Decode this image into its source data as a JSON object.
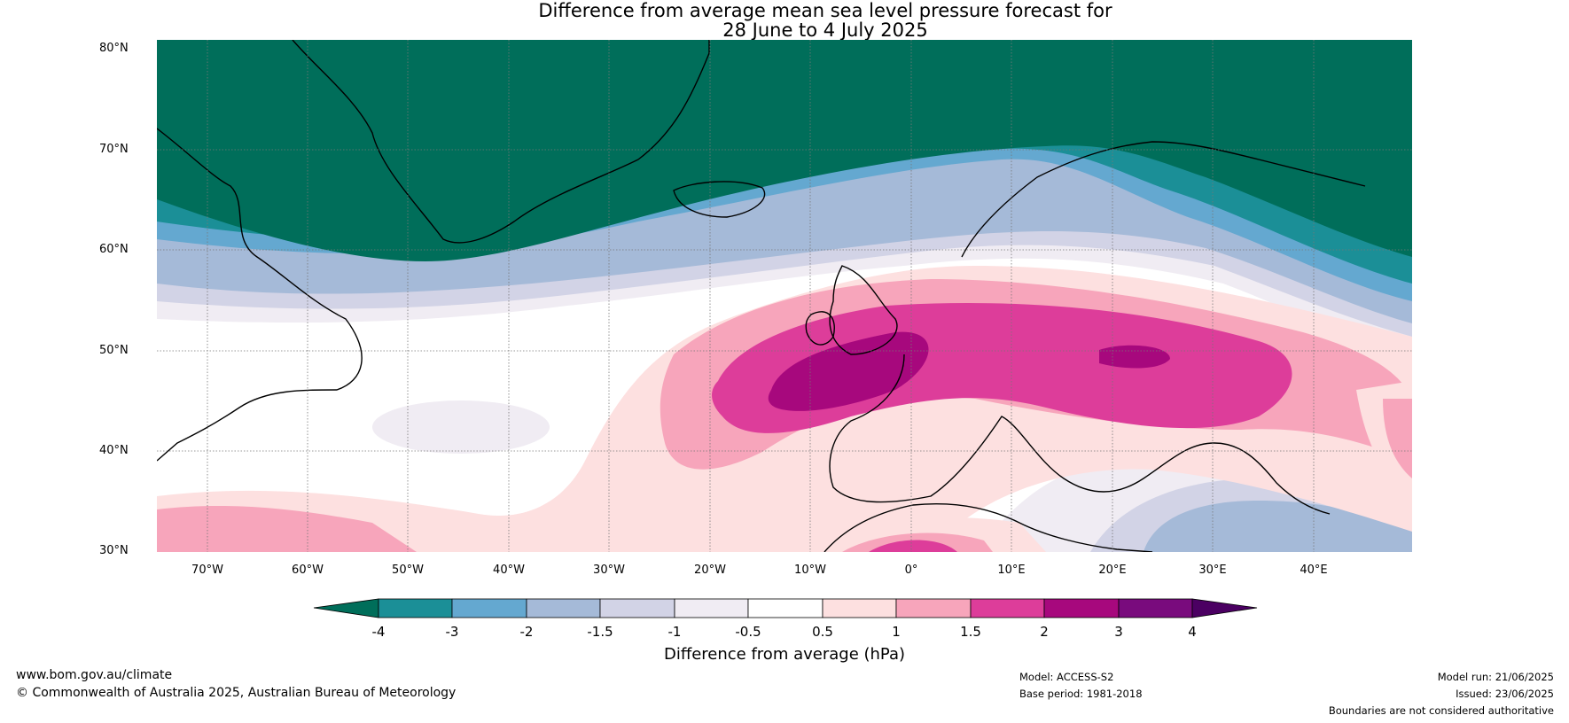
{
  "title": {
    "line1": "Difference from average mean sea level pressure forecast for",
    "line2": "28 June to 4 July 2025"
  },
  "axes": {
    "latitudes": [
      "80°N",
      "70°N",
      "60°N",
      "50°N",
      "40°N",
      "30°N"
    ],
    "longitudes": [
      "70°W",
      "60°W",
      "50°W",
      "40°W",
      "30°W",
      "20°W",
      "10°W",
      "0°",
      "10°E",
      "20°E",
      "30°E",
      "40°E"
    ]
  },
  "colorbar": {
    "title": "Difference from average (hPa)",
    "ticks": [
      "-4",
      "-3",
      "-2",
      "-1.5",
      "-1",
      "-0.5",
      "0.5",
      "1",
      "1.5",
      "2",
      "3",
      "4"
    ],
    "colors": [
      "#006e5a",
      "#1b8f97",
      "#64a8d0",
      "#a5bad8",
      "#d2d3e6",
      "#f0ecf3",
      "#ffffff",
      "#fde0e0",
      "#f7a5bb",
      "#dd3d9a",
      "#a7087d",
      "#790b7d",
      "#4b0062"
    ]
  },
  "footer": {
    "website": "www.bom.gov.au/climate",
    "copyright": "© Commonwealth of Australia 2025, Australian Bureau of Meteorology",
    "model": "Model: ACCESS-S2",
    "base_period": "Base period: 1981-2018",
    "model_run": "Model run: 21/06/2025",
    "issued": "Issued: 23/06/2025",
    "disclaimer": "Boundaries are not considered authoritative"
  }
}
